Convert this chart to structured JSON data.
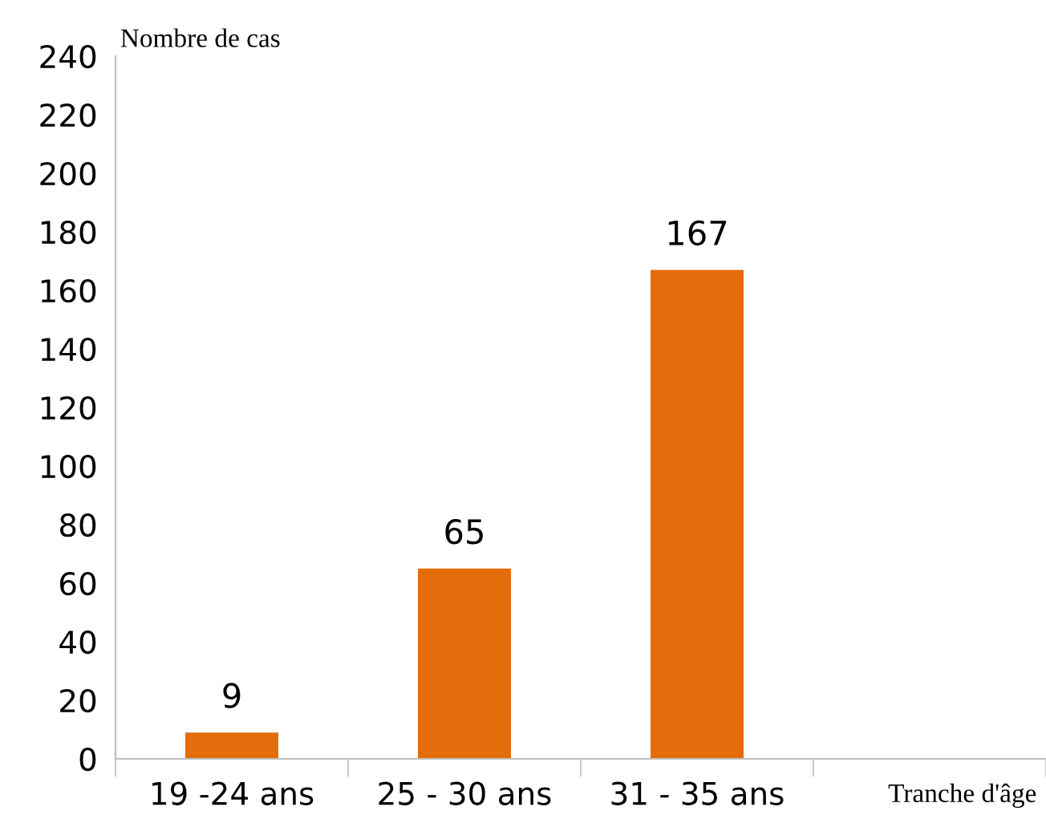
{
  "chart_data": {
    "type": "bar",
    "ylabel": "Nombre de cas",
    "xlabel": "Tranche d'âge",
    "categories": [
      "19 -24 ans",
      "25 - 30 ans",
      "31 - 35 ans",
      null
    ],
    "values": [
      9,
      65,
      167,
      null
    ],
    "color": "#e46c0a",
    "ylim": [
      0,
      240
    ],
    "yticks": [
      0,
      20,
      40,
      60,
      80,
      100,
      120,
      140,
      160,
      180,
      200,
      220,
      240
    ],
    "data_labels": true,
    "grid": false,
    "legend": false
  }
}
